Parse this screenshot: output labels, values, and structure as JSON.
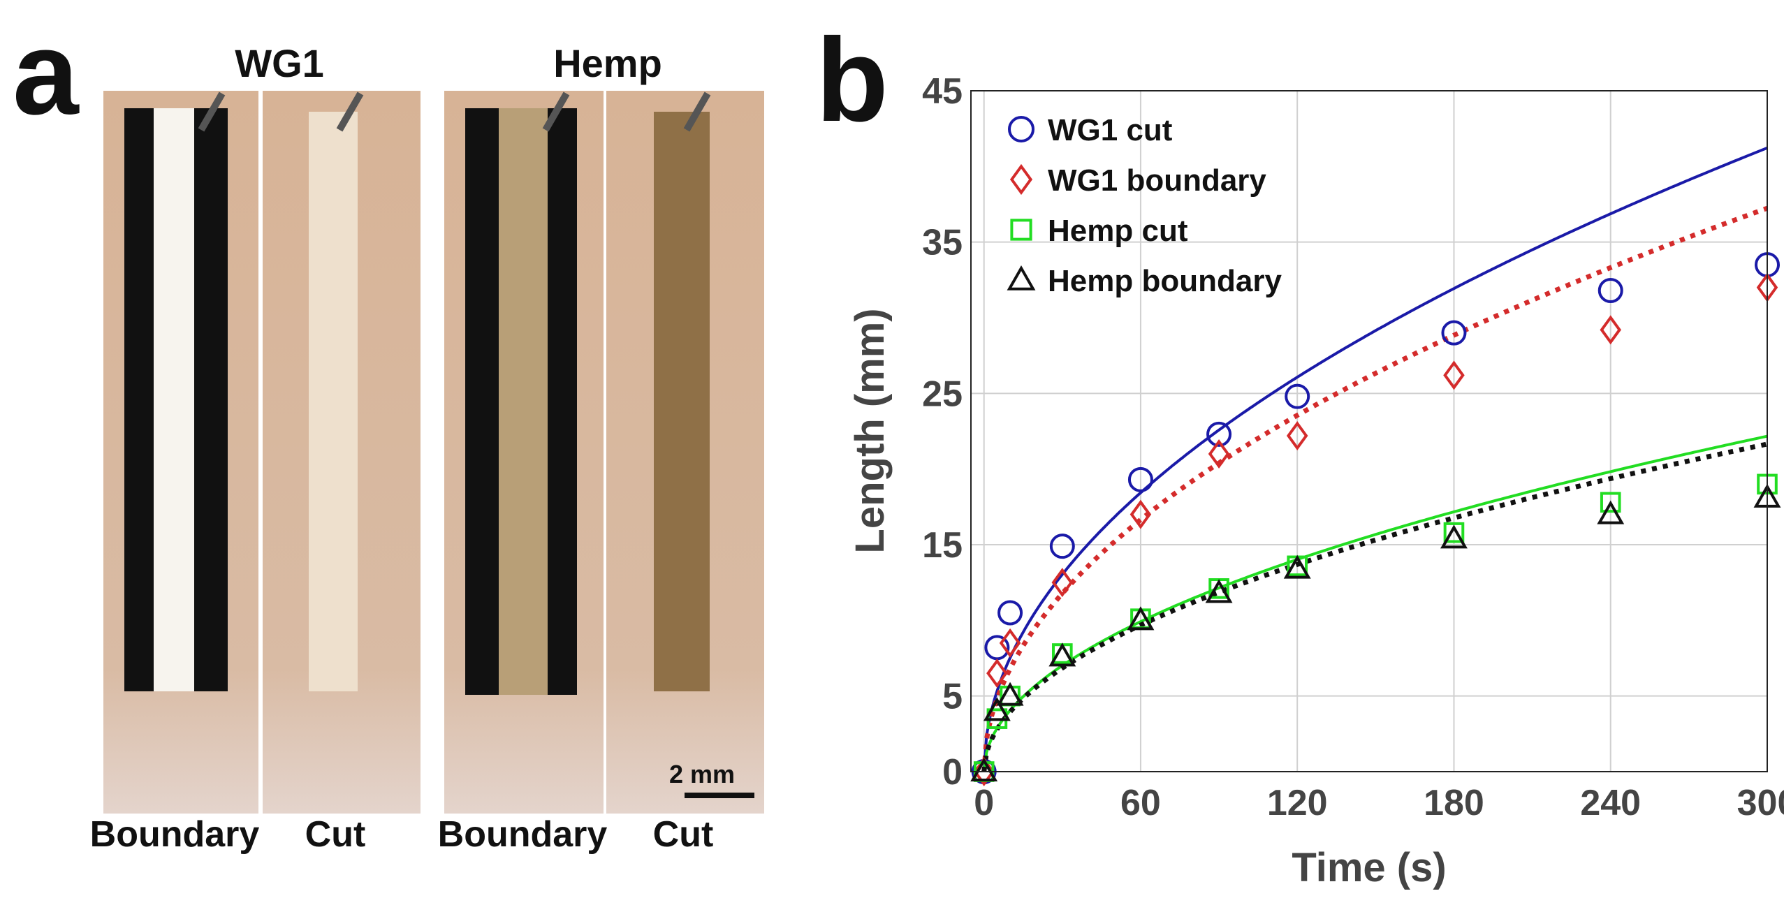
{
  "panel_a": {
    "letter": "a",
    "groups": [
      {
        "title": "WG1",
        "labels": [
          "Boundary",
          "Cut"
        ]
      },
      {
        "title": "Hemp",
        "labels": [
          "Boundary",
          "Cut"
        ]
      }
    ],
    "scalebar": "2 mm"
  },
  "panel_b": {
    "letter": "b"
  },
  "chart_data": {
    "type": "scatter",
    "xlabel": "Time (s)",
    "ylabel": "Length (mm)",
    "xlim": [
      -5,
      300
    ],
    "ylim": [
      0,
      45
    ],
    "xticks": [
      0,
      60,
      120,
      180,
      240,
      300
    ],
    "yticks": [
      0,
      5,
      15,
      25,
      35,
      45
    ],
    "grid": true,
    "legend_position": "top-left",
    "colors": {
      "blue": "#1a1aa8",
      "red": "#d42b2b",
      "green": "#22dd22",
      "black": "#111111"
    },
    "series": [
      {
        "name": "WG1 cut",
        "marker": "circle",
        "color": "#1a1aa8",
        "x": [
          0,
          5,
          10,
          30,
          60,
          90,
          120,
          180,
          240,
          300
        ],
        "y": [
          0,
          8.2,
          10.5,
          14.9,
          19.3,
          22.3,
          24.8,
          29.0,
          31.8,
          33.5
        ]
      },
      {
        "name": "WG1 boundary",
        "marker": "diamond",
        "color": "#d42b2b",
        "x": [
          0,
          5,
          10,
          30,
          60,
          90,
          120,
          180,
          240,
          300
        ],
        "y": [
          0,
          6.5,
          8.5,
          12.5,
          17.0,
          21.0,
          22.2,
          26.2,
          29.2,
          32.0
        ]
      },
      {
        "name": "Hemp cut",
        "marker": "square",
        "color": "#22dd22",
        "x": [
          0,
          5,
          10,
          30,
          60,
          90,
          120,
          180,
          240,
          300
        ],
        "y": [
          0,
          3.5,
          5.0,
          7.8,
          10.1,
          12.1,
          13.6,
          15.8,
          17.8,
          19.0
        ]
      },
      {
        "name": "Hemp boundary",
        "marker": "triangle",
        "color": "#111111",
        "x": [
          0,
          5,
          10,
          30,
          60,
          90,
          120,
          180,
          240,
          300
        ],
        "y": [
          0,
          4.0,
          5.0,
          7.6,
          10.0,
          11.8,
          13.4,
          15.4,
          17.0,
          18.1
        ]
      }
    ],
    "fits": [
      {
        "name": "WG1 cut fit",
        "color": "#1a1aa8",
        "style": "solid",
        "coef": 2.38,
        "offset": 0
      },
      {
        "name": "WG1 boundary fit",
        "color": "#d42b2b",
        "style": "dotted",
        "coef": 2.15,
        "offset": 0
      },
      {
        "name": "Hemp cut fit",
        "color": "#22dd22",
        "style": "solid",
        "coef": 1.28,
        "offset": 0
      },
      {
        "name": "Hemp boundary fit",
        "color": "#111111",
        "style": "dotted",
        "coef": 1.25,
        "offset": 0
      }
    ]
  }
}
